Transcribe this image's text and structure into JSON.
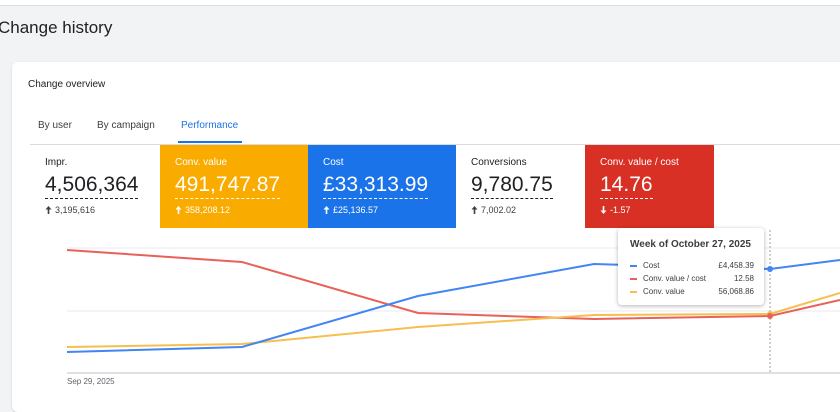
{
  "header": {
    "title": "Change history"
  },
  "card": {
    "title": "Change overview",
    "tabs": [
      "By user",
      "By campaign",
      "Performance"
    ],
    "metrics": [
      {
        "label": "Impr.",
        "value": "4,506,364",
        "change": "3,195,616",
        "direction": "up",
        "background": "#ffffff"
      },
      {
        "label": "Conv. value",
        "value": "491,747.87",
        "change": "358,208.12",
        "direction": "up",
        "background": "#f9ab00"
      },
      {
        "label": "Cost",
        "value": "£33,313.99",
        "change": "£25,136.57",
        "direction": "up",
        "background": "#1a73e8"
      },
      {
        "label": "Conversions",
        "value": "9,780.75",
        "change": "7,002.02",
        "direction": "up",
        "background": "#ffffff"
      },
      {
        "label": "Conv. value / cost",
        "value": "14.76",
        "change": "-1.57",
        "direction": "down",
        "background": "#d93025"
      }
    ],
    "x_label": "Sep 29, 2025",
    "tooltip": {
      "title": "Week of October 27, 2025",
      "rows": [
        {
          "name": "Cost",
          "value": "£4,458.39",
          "color": "#4285f4"
        },
        {
          "name": "Conv. value / cost",
          "value": "12.58",
          "color": "#e8625a"
        },
        {
          "name": "Conv. value",
          "value": "56,068.86",
          "color": "#f6bf4f"
        }
      ]
    }
  }
}
